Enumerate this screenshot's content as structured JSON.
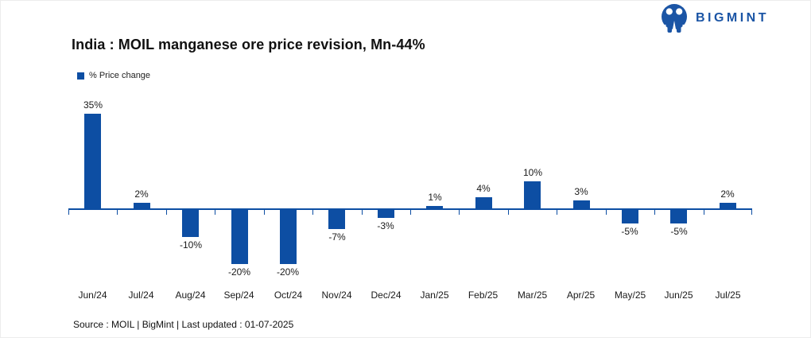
{
  "logo": {
    "text": "BIGMINT",
    "color": "#1b55a5"
  },
  "chart_data": {
    "type": "bar",
    "title": "India : MOIL manganese ore price revision, Mn-44%",
    "legend": [
      {
        "label": "% Price change",
        "color": "#0d4ea3"
      }
    ],
    "legend_position": "top-left",
    "categories": [
      "Jun/24",
      "Jul/24",
      "Aug/24",
      "Sep/24",
      "Oct/24",
      "Nov/24",
      "Dec/24",
      "Jan/25",
      "Feb/25",
      "Mar/25",
      "Apr/25",
      "May/25",
      "Jun/25",
      "Jul/25"
    ],
    "series": [
      {
        "name": "% Price change",
        "values": [
          35,
          2,
          -10,
          -20,
          -20,
          -7,
          -3,
          1,
          4,
          10,
          3,
          -5,
          -5,
          2
        ],
        "labels": [
          "35%",
          "2%",
          "-10%",
          "-20%",
          "-20%",
          "-7%",
          "-3%",
          "1%",
          "4%",
          "10%",
          "3%",
          "-5%",
          "-5%",
          "2%"
        ]
      }
    ],
    "bar_color": "#0d4ea3",
    "axis_color": "#0d4ea3",
    "ylim": [
      -25,
      40
    ],
    "grid": false,
    "xlabel": "",
    "ylabel": ""
  },
  "footer": {
    "source_note": "Source : MOIL | BigMint | Last updated : 01-07-2025"
  }
}
